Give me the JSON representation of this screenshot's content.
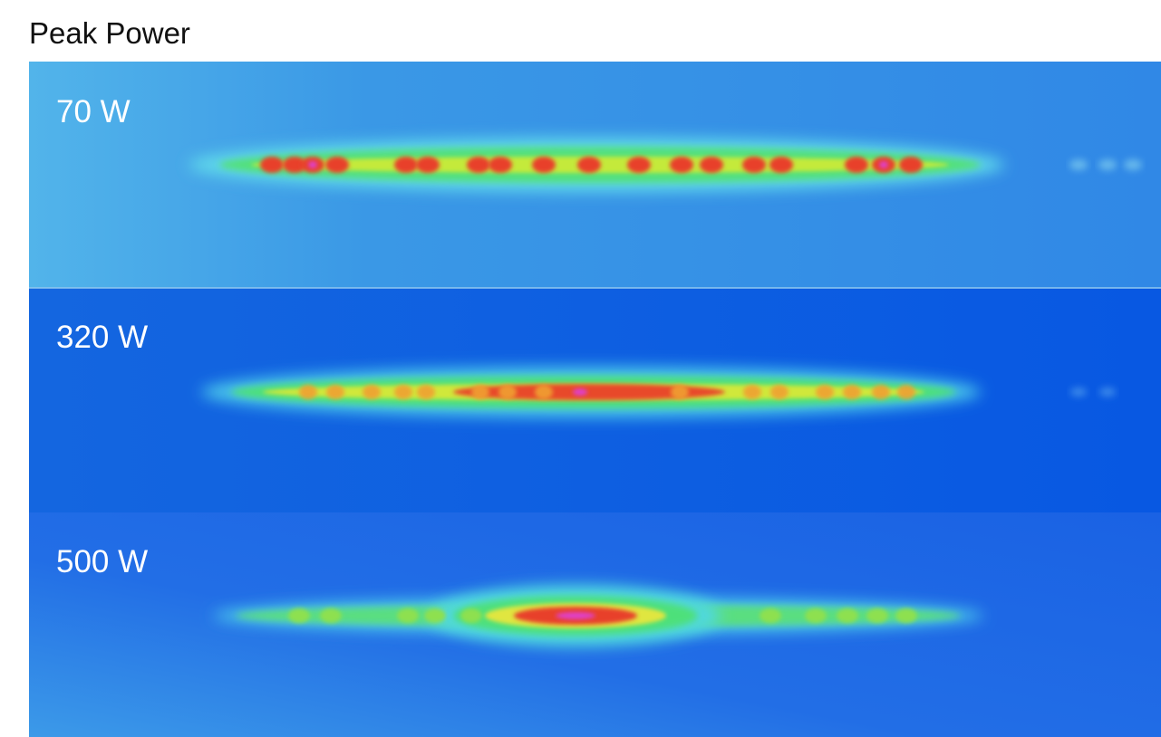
{
  "header": {
    "title": "Peak Power"
  },
  "panels": [
    {
      "label": "70 W"
    },
    {
      "label": "320 W"
    },
    {
      "label": "500 W"
    }
  ]
}
